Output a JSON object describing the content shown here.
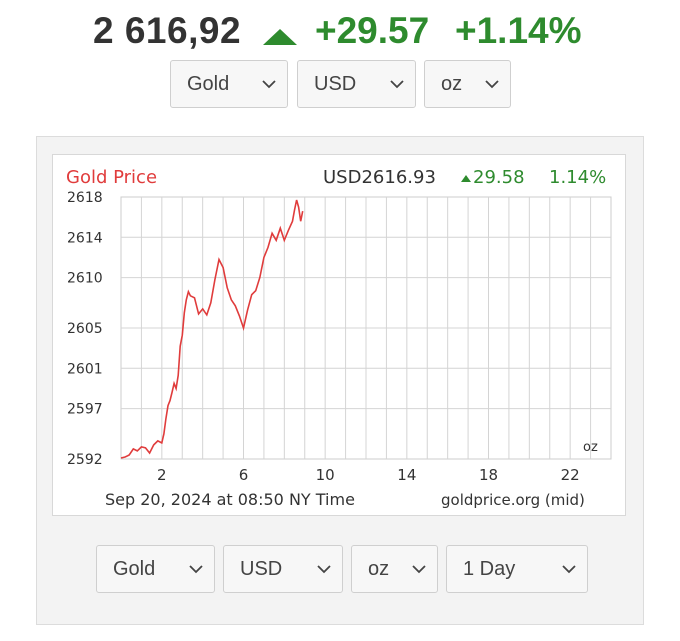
{
  "header": {
    "price": "2 616,92",
    "change": "+29.57",
    "change_pct": "+1.14%",
    "direction_icon": "triangle-up-icon",
    "positive_color": "#2e8b2e"
  },
  "top_selectors": {
    "metal": "Gold",
    "currency": "USD",
    "unit": "oz"
  },
  "chart_panel": {
    "title": "Gold Price",
    "title_color": "#e03c3c",
    "quote_currency_price": "USD2616.93",
    "quote_change": "29.58",
    "quote_pct": "1.14%",
    "unit_label": "oz",
    "timestamp": "Sep 20, 2024 at 08:50 NY Time",
    "source": "goldprice.org (mid)"
  },
  "bottom_selectors": {
    "metal": "Gold",
    "currency": "USD",
    "unit": "oz",
    "range": "1 Day"
  },
  "chart_data": {
    "type": "line",
    "title": "Gold Price",
    "xlabel": "",
    "ylabel": "",
    "x_ticks": [
      "2",
      "6",
      "10",
      "14",
      "18",
      "22"
    ],
    "y_ticks": [
      "2592",
      "2597",
      "2601",
      "2605",
      "2610",
      "2614",
      "2618"
    ],
    "xlim": [
      0,
      24
    ],
    "ylim": [
      2592,
      2618
    ],
    "grid": true,
    "series": [
      {
        "color": "#e03c3c",
        "x": [
          0,
          0.2,
          0.4,
          0.6,
          0.8,
          1.0,
          1.2,
          1.4,
          1.6,
          1.8,
          2.0,
          2.1,
          2.2,
          2.3,
          2.4,
          2.5,
          2.6,
          2.7,
          2.8,
          2.9,
          3.0,
          3.1,
          3.2,
          3.3,
          3.4,
          3.6,
          3.8,
          4.0,
          4.2,
          4.4,
          4.6,
          4.8,
          5.0,
          5.2,
          5.4,
          5.6,
          5.8,
          6.0,
          6.2,
          6.4,
          6.6,
          6.8,
          7.0,
          7.2,
          7.4,
          7.6,
          7.8,
          8.0,
          8.2,
          8.4,
          8.5,
          8.6,
          8.7,
          8.8,
          8.9
        ],
        "y": [
          2592.1,
          2592.2,
          2592.4,
          2593.0,
          2592.8,
          2593.2,
          2593.1,
          2592.6,
          2593.4,
          2593.8,
          2593.6,
          2594.5,
          2596.0,
          2597.3,
          2597.8,
          2598.6,
          2599.5,
          2599.0,
          2600.3,
          2603.2,
          2604.3,
          2606.5,
          2607.8,
          2608.6,
          2608.2,
          2608.0,
          2606.4,
          2606.9,
          2606.3,
          2607.5,
          2609.8,
          2611.8,
          2611.0,
          2609.0,
          2607.8,
          2607.2,
          2606.2,
          2605.0,
          2606.8,
          2608.3,
          2608.7,
          2610.0,
          2612.0,
          2613.0,
          2614.4,
          2613.7,
          2614.9,
          2613.7,
          2614.7,
          2615.6,
          2616.7,
          2617.7,
          2617.0,
          2615.6,
          2616.6
        ]
      }
    ]
  }
}
